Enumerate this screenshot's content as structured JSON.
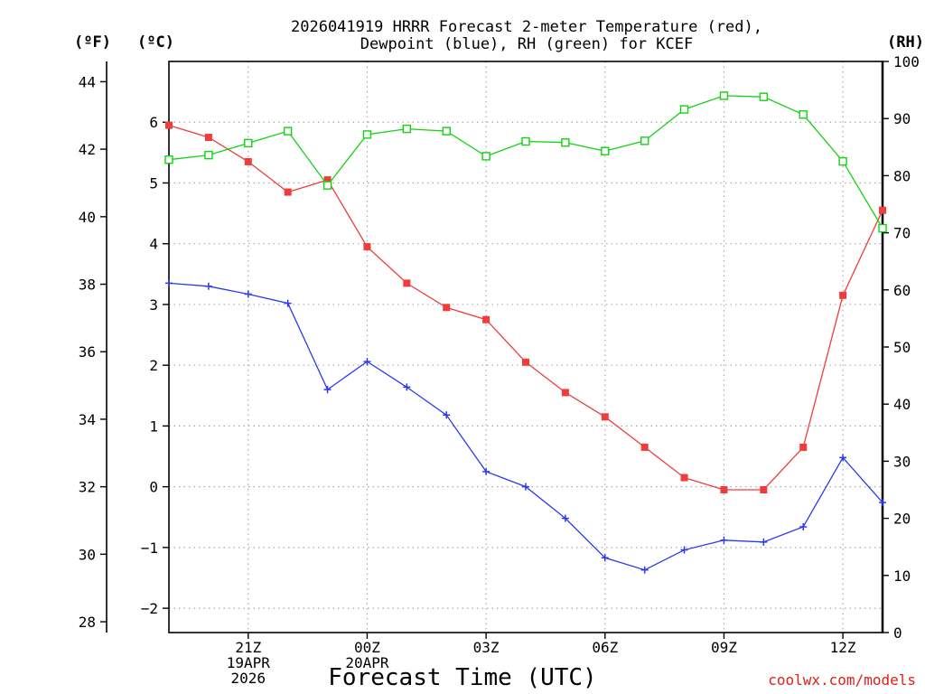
{
  "chart_data": {
    "type": "line",
    "title": [
      "2026041919 HRRR Forecast 2-meter Temperature (red),",
      "Dewpoint (blue), RH (green) for KCEF"
    ],
    "xlabel": "Forecast Time (UTC)",
    "credit": "coolwx.com/models",
    "units": {
      "fahrenheit": "(ºF)",
      "celsius": "(ºC)",
      "rh": "(RH)"
    },
    "x_hours": [
      19,
      20,
      21,
      22,
      23,
      24,
      25,
      26,
      27,
      28,
      29,
      30,
      31,
      32,
      33,
      34,
      35,
      36,
      37
    ],
    "x_range": [
      19,
      37
    ],
    "x_ticks": [
      {
        "hour": 21,
        "lines": [
          "21Z",
          "19APR",
          "2026"
        ]
      },
      {
        "hour": 24,
        "lines": [
          "00Z",
          "20APR"
        ]
      },
      {
        "hour": 27,
        "lines": [
          "03Z"
        ]
      },
      {
        "hour": 30,
        "lines": [
          "06Z"
        ]
      },
      {
        "hour": 33,
        "lines": [
          "09Z"
        ]
      },
      {
        "hour": 36,
        "lines": [
          "12Z"
        ]
      }
    ],
    "ylim_c": [
      -2.4,
      7.0
    ],
    "ylim_f": [
      27.68,
      44.6
    ],
    "ylim_rh": [
      0,
      100
    ],
    "yticks_c": [
      -2,
      -1,
      0,
      1,
      2,
      3,
      4,
      5,
      6
    ],
    "yticks_f": [
      28,
      30,
      32,
      34,
      36,
      38,
      40,
      42,
      44
    ],
    "yticks_rh": [
      0,
      10,
      20,
      30,
      40,
      50,
      60,
      70,
      80,
      90,
      100
    ],
    "series": [
      {
        "name": "Temperature",
        "color": "#f03c3c",
        "marker": "filled-square",
        "axis": "c",
        "values": [
          5.95,
          5.75,
          5.35,
          4.85,
          5.05,
          3.95,
          3.35,
          2.95,
          2.75,
          2.05,
          1.55,
          1.15,
          0.65,
          0.15,
          -0.05,
          -0.05,
          0.65,
          3.15,
          4.55
        ]
      },
      {
        "name": "Dewpoint",
        "color": "#2a3af0",
        "marker": "plus",
        "axis": "c",
        "values": [
          3.35,
          3.3,
          3.17,
          3.02,
          1.6,
          2.06,
          1.64,
          1.18,
          0.25,
          0.0,
          -0.52,
          -1.17,
          -1.37,
          -1.04,
          -0.88,
          -0.91,
          -0.66,
          0.48,
          -0.26
        ]
      },
      {
        "name": "RH",
        "color": "#14d214",
        "marker": "open-square",
        "axis": "rh",
        "values": [
          82.8,
          83.6,
          85.7,
          87.8,
          78.3,
          87.2,
          88.2,
          87.8,
          83.4,
          86.0,
          85.8,
          84.3,
          86.1,
          91.6,
          94.0,
          93.8,
          90.7,
          82.5,
          70.8
        ]
      }
    ]
  }
}
